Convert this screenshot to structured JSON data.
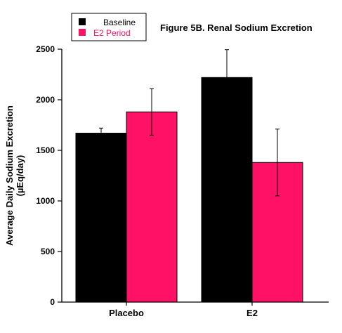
{
  "chart_data": {
    "type": "bar",
    "title": "Figure 5B. Renal Sodium Excretion",
    "ylabel": "Average Daily Sodium Excretion",
    "ylabel_unit": "(µEq/day)",
    "xlabel": "",
    "categories": [
      "Placebo",
      "E2"
    ],
    "ylim": [
      0,
      2500
    ],
    "yticks": [
      0,
      500,
      1000,
      1500,
      2000,
      2500
    ],
    "grid": false,
    "legend_position": "top-left",
    "series": [
      {
        "name": "Baseline",
        "color": "#000000",
        "legend_text_color": "#000000",
        "values": [
          1670,
          2220
        ],
        "errors": [
          50,
          275
        ]
      },
      {
        "name": "E2 Period",
        "color": "#ff1166",
        "legend_text_color": "#ff1166",
        "values": [
          1880,
          1380
        ],
        "errors": [
          230,
          330
        ]
      }
    ]
  }
}
